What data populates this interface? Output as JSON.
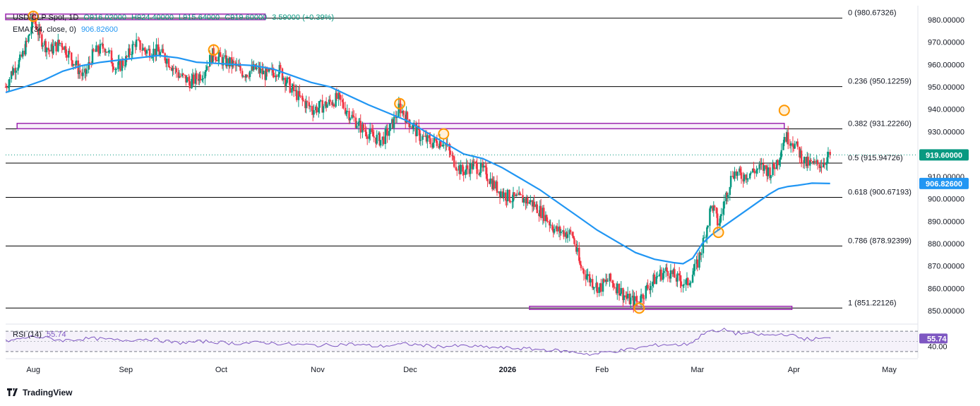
{
  "header": {
    "symbol": "USD/CLP Spot, 1D",
    "open": "O916.02000",
    "high": "H924.40000",
    "low": "L915.64000",
    "close": "C919.60000",
    "change": "3.59000 (+0.39%)",
    "ema_label": "EMA (34, close, 0)",
    "ema_value": "906.82600",
    "rsi_label": "RSI (14)",
    "rsi_value": "55.74"
  },
  "branding": {
    "name": "TradingView"
  },
  "colors": {
    "up": "#089981",
    "down": "#f23645",
    "ema": "#2196f3",
    "zone": "#9c27b0",
    "rsi": "#7e57c2",
    "fib": "#000000",
    "marker": "#ff9800"
  },
  "chart_data": {
    "type": "candlestick",
    "title": "USD/CLP Spot, 1D",
    "y_axis": {
      "min": 845,
      "max": 985,
      "ticks": [
        "980.00000",
        "970.00000",
        "960.00000",
        "950.00000",
        "940.00000",
        "930.00000",
        "920.00000",
        "910.00000",
        "900.00000",
        "890.00000",
        "880.00000",
        "870.00000",
        "860.00000",
        "850.00000"
      ],
      "tick_values": [
        980,
        970,
        960,
        950,
        940,
        930,
        920,
        910,
        900,
        890,
        880,
        870,
        860,
        850
      ]
    },
    "x_axis": {
      "labels": [
        "Aug",
        "Sep",
        "Oct",
        "Nov",
        "Dec",
        "2026",
        "Feb",
        "Mar",
        "Apr",
        "May"
      ],
      "label_day_index": [
        29,
        126,
        226,
        327,
        424,
        526,
        625,
        725,
        826,
        926
      ],
      "total_days": 956,
      "last_candle_day": 864
    },
    "last_price": {
      "label": "919.60000",
      "value": 919.6
    },
    "ema_last": {
      "label": "906.82600",
      "value": 906.826
    },
    "fib_levels": [
      {
        "ratio": "0",
        "label": "0 (980.67326)",
        "value": 980.67326
      },
      {
        "ratio": "0.236",
        "label": "0.236 (950.12259)",
        "value": 950.12259
      },
      {
        "ratio": "0.382",
        "label": "0.382 (931.22260)",
        "value": 931.2226
      },
      {
        "ratio": "0.5",
        "label": "0.5 (915.94726)",
        "value": 915.94726
      },
      {
        "ratio": "0.618",
        "label": "0.618 (900.67193)",
        "value": 900.67193
      },
      {
        "ratio": "0.786",
        "label": "0.786 (878.92399)",
        "value": 878.92399
      },
      {
        "ratio": "1",
        "label": "1 (851.22126)",
        "value": 851.22126
      }
    ],
    "zones": [
      {
        "name": "top-resistance",
        "from_day": 0,
        "to_day": 272,
        "low": 980.0,
        "high": 982.5
      },
      {
        "name": "mid-resistance",
        "from_day": 12,
        "to_day": 816,
        "low": 931.3,
        "high": 933.7
      },
      {
        "name": "bottom-support",
        "from_day": 549,
        "to_day": 824,
        "low": 850.6,
        "high": 852.0
      }
    ],
    "swing_markers": [
      {
        "day": 29,
        "price": 981.5
      },
      {
        "day": 218,
        "price": 966.5
      },
      {
        "day": 413,
        "price": 942.5
      },
      {
        "day": 459,
        "price": 929.0
      },
      {
        "day": 664,
        "price": 851.2
      },
      {
        "day": 747,
        "price": 885.0
      },
      {
        "day": 816,
        "price": 939.5
      }
    ],
    "ema_path": [
      [
        0,
        947.5
      ],
      [
        20,
        950.0
      ],
      [
        40,
        953.0
      ],
      [
        60,
        957.0
      ],
      [
        80,
        959.5
      ],
      [
        100,
        961.0
      ],
      [
        120,
        962.0
      ],
      [
        140,
        963.0
      ],
      [
        160,
        964.0
      ],
      [
        180,
        963.0
      ],
      [
        200,
        961.0
      ],
      [
        220,
        960.5
      ],
      [
        240,
        960.0
      ],
      [
        260,
        959.5
      ],
      [
        280,
        958.0
      ],
      [
        300,
        955.0
      ],
      [
        320,
        952.0
      ],
      [
        340,
        950.0
      ],
      [
        360,
        946.0
      ],
      [
        380,
        942.0
      ],
      [
        400,
        938.5
      ],
      [
        420,
        935.0
      ],
      [
        440,
        930.0
      ],
      [
        460,
        925.0
      ],
      [
        480,
        920.0
      ],
      [
        500,
        918.0
      ],
      [
        520,
        914.0
      ],
      [
        540,
        909.0
      ],
      [
        560,
        904.0
      ],
      [
        580,
        898.0
      ],
      [
        600,
        892.0
      ],
      [
        620,
        886.0
      ],
      [
        640,
        881.0
      ],
      [
        660,
        876.0
      ],
      [
        680,
        873.0
      ],
      [
        700,
        871.5
      ],
      [
        710,
        871.0
      ],
      [
        720,
        873.5
      ],
      [
        730,
        880.0
      ],
      [
        740,
        884.0
      ],
      [
        750,
        887.0
      ],
      [
        760,
        890.0
      ],
      [
        770,
        893.0
      ],
      [
        780,
        896.0
      ],
      [
        790,
        899.0
      ],
      [
        800,
        902.0
      ],
      [
        810,
        904.5
      ],
      [
        820,
        905.5
      ],
      [
        830,
        906.0
      ],
      [
        845,
        907.0
      ],
      [
        864,
        906.826
      ]
    ],
    "price_anchors": [
      [
        0,
        950
      ],
      [
        8,
        958
      ],
      [
        16,
        962
      ],
      [
        24,
        972
      ],
      [
        29,
        981
      ],
      [
        36,
        972
      ],
      [
        46,
        966
      ],
      [
        58,
        970
      ],
      [
        70,
        962
      ],
      [
        82,
        954
      ],
      [
        92,
        965
      ],
      [
        104,
        968
      ],
      [
        116,
        958
      ],
      [
        126,
        962
      ],
      [
        136,
        970
      ],
      [
        146,
        966
      ],
      [
        158,
        966
      ],
      [
        168,
        963
      ],
      [
        182,
        955
      ],
      [
        194,
        952
      ],
      [
        206,
        956
      ],
      [
        218,
        965
      ],
      [
        226,
        962
      ],
      [
        238,
        960
      ],
      [
        250,
        956
      ],
      [
        262,
        958
      ],
      [
        274,
        955
      ],
      [
        286,
        958
      ],
      [
        298,
        950
      ],
      [
        310,
        944
      ],
      [
        322,
        940
      ],
      [
        336,
        942
      ],
      [
        348,
        945
      ],
      [
        360,
        938
      ],
      [
        372,
        932
      ],
      [
        384,
        928
      ],
      [
        394,
        926
      ],
      [
        404,
        932
      ],
      [
        413,
        941
      ],
      [
        422,
        935
      ],
      [
        434,
        928
      ],
      [
        446,
        925
      ],
      [
        459,
        926
      ],
      [
        468,
        918
      ],
      [
        478,
        912
      ],
      [
        490,
        915
      ],
      [
        502,
        912
      ],
      [
        512,
        906
      ],
      [
        522,
        902
      ],
      [
        532,
        900
      ],
      [
        542,
        900
      ],
      [
        552,
        898
      ],
      [
        564,
        893
      ],
      [
        576,
        886
      ],
      [
        586,
        885
      ],
      [
        594,
        884
      ],
      [
        602,
        870
      ],
      [
        612,
        864
      ],
      [
        622,
        860
      ],
      [
        632,
        864
      ],
      [
        642,
        860
      ],
      [
        652,
        855
      ],
      [
        662,
        854
      ],
      [
        672,
        860
      ],
      [
        684,
        866
      ],
      [
        694,
        868
      ],
      [
        704,
        864
      ],
      [
        714,
        862
      ],
      [
        724,
        870
      ],
      [
        732,
        882
      ],
      [
        740,
        898
      ],
      [
        747,
        888
      ],
      [
        754,
        900
      ],
      [
        762,
        912
      ],
      [
        772,
        910
      ],
      [
        782,
        912
      ],
      [
        792,
        914
      ],
      [
        802,
        912
      ],
      [
        810,
        918
      ],
      [
        816,
        928
      ],
      [
        824,
        926
      ],
      [
        830,
        922
      ],
      [
        838,
        916
      ],
      [
        848,
        915
      ],
      [
        856,
        916
      ],
      [
        864,
        919.6
      ]
    ],
    "rsi": {
      "label": "RSI (14)",
      "value": 55.74,
      "levels": [
        70,
        30
      ],
      "axis_label": "40.00",
      "band_low": 30,
      "band_high": 70,
      "path": [
        [
          0,
          50
        ],
        [
          30,
          60
        ],
        [
          60,
          52
        ],
        [
          90,
          56
        ],
        [
          120,
          52
        ],
        [
          150,
          55
        ],
        [
          180,
          47
        ],
        [
          210,
          50
        ],
        [
          240,
          46
        ],
        [
          270,
          48
        ],
        [
          300,
          44
        ],
        [
          330,
          42
        ],
        [
          360,
          45
        ],
        [
          390,
          40
        ],
        [
          420,
          45
        ],
        [
          450,
          40
        ],
        [
          480,
          41
        ],
        [
          510,
          38
        ],
        [
          540,
          36
        ],
        [
          570,
          33
        ],
        [
          600,
          28
        ],
        [
          615,
          24
        ],
        [
          630,
          29
        ],
        [
          645,
          32
        ],
        [
          660,
          36
        ],
        [
          675,
          41
        ],
        [
          690,
          44
        ],
        [
          705,
          43
        ],
        [
          715,
          45
        ],
        [
          725,
          55
        ],
        [
          735,
          72
        ],
        [
          745,
          68
        ],
        [
          755,
          74
        ],
        [
          765,
          66
        ],
        [
          775,
          66
        ],
        [
          790,
          63
        ],
        [
          805,
          62
        ],
        [
          815,
          65
        ],
        [
          825,
          61
        ],
        [
          835,
          56
        ],
        [
          845,
          54
        ],
        [
          855,
          56
        ],
        [
          864,
          55.74
        ]
      ]
    }
  }
}
